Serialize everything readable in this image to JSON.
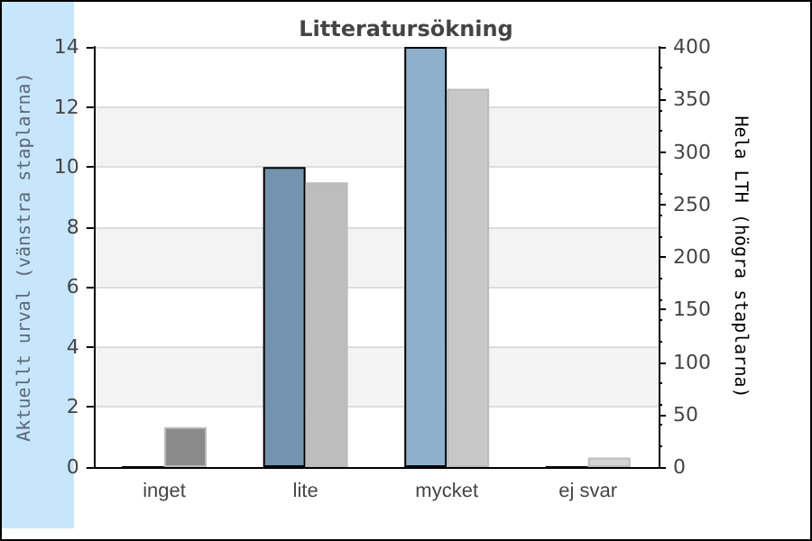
{
  "chart_data": {
    "type": "bar",
    "title": "Litteratursökning",
    "ylabel": "Aktuellt urval (vänstra staplarna)",
    "y2label": "Hela LTH (högra staplarna)",
    "categories": [
      "inget",
      "lite",
      "mycket",
      "ej svar"
    ],
    "series": [
      {
        "colors": [
          "#7393ae",
          "#7393ae",
          "#8fb0cb",
          "#8fb0cb"
        ],
        "values": [
          0,
          10,
          14,
          0
        ]
      },
      {
        "axis": "y2",
        "colors": [
          "#8a8a8a",
          "#bdbdbd",
          "#c8c8c8",
          "#d4d4d4"
        ],
        "values": [
          38,
          271,
          360,
          9
        ]
      }
    ],
    "ylim": [
      0,
      14
    ],
    "yticks": [
      0,
      2,
      4,
      6,
      8,
      10,
      12,
      14
    ],
    "y2lim": [
      0,
      400
    ],
    "y2ticks": [
      0,
      50,
      100,
      150,
      200,
      250,
      300,
      350,
      400
    ],
    "grid": "y"
  }
}
